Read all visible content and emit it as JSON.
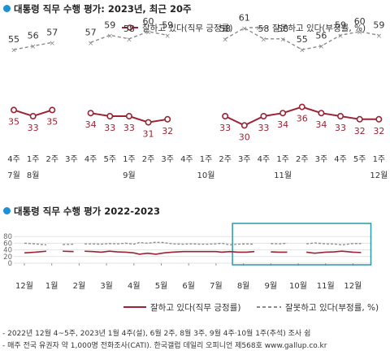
{
  "colors": {
    "approve": "#9b2335",
    "disapprove": "#8a8a8a",
    "accent": "#1e90d6",
    "highlight": "#2b9aa8"
  },
  "chart_data": [
    {
      "type": "line",
      "title": "대통령 직무 수행 평가: 2023년, 최근 20주",
      "legend": {
        "position": "top-right"
      },
      "series": [
        {
          "name": "잘하고 있다(직무 긍정률)",
          "style": "solid-circle",
          "values": [
            35,
            33,
            35,
            null,
            34,
            33,
            33,
            31,
            32,
            null,
            null,
            33,
            30,
            33,
            34,
            36,
            34,
            33,
            32,
            32
          ]
        },
        {
          "name": "잘못하고 있다(부정률, %)",
          "style": "dashed-x",
          "values": [
            55,
            56,
            57,
            null,
            57,
            59,
            58,
            60,
            59,
            null,
            null,
            58,
            61,
            58,
            58,
            55,
            56,
            59,
            60,
            59
          ]
        }
      ],
      "x_week_labels": [
        "4주",
        "1주",
        "2주",
        "3주",
        "4주",
        "5주",
        "1주",
        "2주",
        "3주",
        "4주",
        "1주",
        "2주",
        "3주",
        "4주",
        "1주",
        "2주",
        "3주",
        "4주",
        "5주",
        "1주"
      ],
      "x_month_labels": [
        {
          "label": "7월",
          "week_index": 0
        },
        {
          "label": "8월",
          "week_index": 1
        },
        {
          "label": "9월",
          "week_index": 6
        },
        {
          "label": "10월",
          "week_index": 10
        },
        {
          "label": "11월",
          "week_index": 14
        },
        {
          "label": "12월",
          "week_index": 19
        }
      ],
      "ylim": [
        20,
        70
      ]
    },
    {
      "type": "line",
      "title": "대통령 직무 수행 평가 2022-2023",
      "y_ticks": [
        0,
        20,
        40,
        60,
        80
      ],
      "ylim": [
        0,
        80
      ],
      "grid": true,
      "legend": {
        "position": "bottom"
      },
      "x_month_labels": [
        "12월",
        "1월",
        "2월",
        "3월",
        "4월",
        "5월",
        "6월",
        "7월",
        "8월",
        "9월",
        "10월",
        "11월",
        "12월"
      ],
      "highlight": {
        "from_month_index": 7.6,
        "to_month_index": 12.3,
        "note": "recent 20 weeks"
      },
      "series": [
        {
          "name": "잘하고 있다(직무 긍정률)",
          "style": "solid",
          "segments": [
            {
              "x": [
                0,
                0.4,
                0.8
              ],
              "values": [
                31,
                33,
                36
              ]
            },
            {
              "x": [
                1.4,
                1.8
              ],
              "values": [
                36,
                35
              ]
            },
            {
              "x": [
                2.2,
                2.5,
                2.8,
                3.1,
                3.4,
                3.7,
                4.0,
                4.2,
                4.5,
                4.8,
                5.1,
                5.4,
                5.8,
                6.1,
                6.4,
                6.7,
                7.0,
                7.2,
                7.5,
                7.8,
                8.1,
                8.4
              ],
              "values": [
                36,
                35,
                33,
                36,
                34,
                33,
                31,
                27,
                30,
                27,
                31,
                33,
                35,
                35,
                35,
                35,
                35,
                33,
                35,
                33,
                33,
                35
              ]
            },
            {
              "x": [
                9.0,
                9.3,
                9.6
              ],
              "values": [
                34,
                33,
                33
              ]
            },
            {
              "x": [
                10.3,
                10.6,
                11.0,
                11.3,
                11.6,
                12.0,
                12.3
              ],
              "values": [
                33,
                30,
                33,
                34,
                36,
                33,
                32
              ]
            }
          ]
        },
        {
          "name": "잘못하고 있다(부정률, %)",
          "style": "dashed",
          "segments": [
            {
              "x": [
                0,
                0.4,
                0.8
              ],
              "values": [
                60,
                58,
                55
              ]
            },
            {
              "x": [
                1.4,
                1.8
              ],
              "values": [
                56,
                57
              ]
            },
            {
              "x": [
                2.2,
                2.5,
                2.8,
                3.1,
                3.4,
                3.7,
                4.0,
                4.2,
                4.5,
                4.8,
                5.1,
                5.4,
                5.8,
                6.1,
                6.4,
                6.7,
                7.0,
                7.2,
                7.5,
                7.8,
                8.1,
                8.4
              ],
              "values": [
                58,
                58,
                57,
                59,
                58,
                60,
                57,
                62,
                60,
                63,
                62,
                58,
                57,
                58,
                57,
                57,
                58,
                60,
                55,
                57,
                58,
                57
              ]
            },
            {
              "x": [
                9.0,
                9.3,
                9.6
              ],
              "values": [
                59,
                58,
                60
              ]
            },
            {
              "x": [
                10.3,
                10.6,
                11.0,
                11.3,
                11.6,
                12.0,
                12.3
              ],
              "values": [
                58,
                61,
                58,
                58,
                55,
                59,
                59
              ]
            }
          ]
        }
      ]
    }
  ],
  "footnotes": [
    "- 2022년 12월 4~5주, 2023년 1월 4주(설), 6월 2주, 8월 3주, 9월 4주·10월 1주(추석) 조사 쉼",
    "- 매주 전국 유권자 약 1,000명 전화조사(CATI). 한국갤럽 데일리 오피니언 제568호 www.gallup.co.kr"
  ]
}
